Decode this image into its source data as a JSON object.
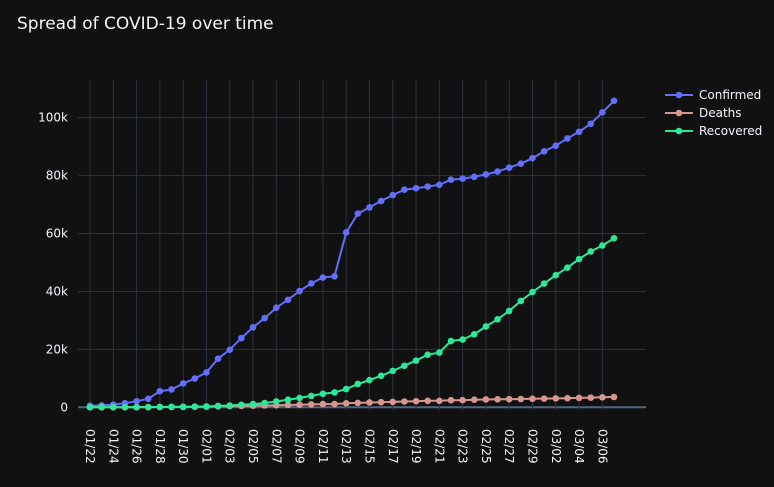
{
  "colors": {
    "background": "#111111",
    "grid": "#283442",
    "text": "#f2f5fa",
    "zero_line": "#506784"
  },
  "chart_data": {
    "type": "line",
    "title": "Spread of COVID-19 over time",
    "xlabel": "",
    "ylabel": "",
    "ylim": [
      -3000,
      113000
    ],
    "y_ticks": [
      0,
      20000,
      40000,
      60000,
      80000,
      100000
    ],
    "y_tick_labels": [
      "0",
      "20k",
      "40k",
      "60k",
      "80k",
      "100k"
    ],
    "x": [
      "01/22",
      "01/23",
      "01/24",
      "01/25",
      "01/26",
      "01/27",
      "01/28",
      "01/29",
      "01/30",
      "01/31",
      "02/01",
      "02/02",
      "02/03",
      "02/04",
      "02/05",
      "02/06",
      "02/07",
      "02/08",
      "02/09",
      "02/10",
      "02/11",
      "02/12",
      "02/13",
      "02/14",
      "02/15",
      "02/16",
      "02/17",
      "02/18",
      "02/19",
      "02/20",
      "02/21",
      "02/22",
      "02/23",
      "02/24",
      "02/25",
      "02/26",
      "02/27",
      "02/28",
      "02/29",
      "03/01",
      "03/02",
      "03/03",
      "03/04",
      "03/05",
      "03/06",
      "03/07"
    ],
    "x_tick_labels": [
      "01/22",
      "01/24",
      "01/26",
      "01/28",
      "01/30",
      "02/01",
      "02/03",
      "02/05",
      "02/07",
      "02/09",
      "02/11",
      "02/13",
      "02/15",
      "02/17",
      "02/19",
      "02/21",
      "02/23",
      "02/25",
      "02/27",
      "02/29",
      "03/02",
      "03/04",
      "03/06"
    ],
    "grid": true,
    "legend_position": "top-right",
    "series": [
      {
        "name": "Confirmed",
        "color": "#636efa",
        "values": [
          555,
          654,
          941,
          1434,
          2118,
          2927,
          5578,
          6166,
          8234,
          9927,
          12038,
          16787,
          19881,
          23892,
          27635,
          30794,
          34391,
          37120,
          40150,
          42762,
          44802,
          45221,
          60368,
          66885,
          69030,
          71224,
          73258,
          75136,
          75639,
          76197,
          76819,
          78572,
          78958,
          79561,
          80406,
          81388,
          82746,
          84112,
          86011,
          88369,
          90306,
          92840,
          95120,
          97886,
          101800,
          105836
        ]
      },
      {
        "name": "Deaths",
        "color": "#d9968f",
        "values": [
          17,
          18,
          26,
          42,
          56,
          82,
          131,
          133,
          171,
          213,
          259,
          362,
          426,
          492,
          564,
          634,
          719,
          806,
          906,
          1013,
          1113,
          1118,
          1371,
          1523,
          1666,
          1770,
          1868,
          2007,
          2122,
          2247,
          2251,
          2458,
          2469,
          2629,
          2708,
          2770,
          2814,
          2872,
          2941,
          2996,
          3085,
          3160,
          3254,
          3348,
          3460,
          3558
        ]
      },
      {
        "name": "Recovered",
        "color": "#2ee89a",
        "values": [
          28,
          30,
          36,
          39,
          52,
          61,
          107,
          126,
          143,
          222,
          284,
          472,
          623,
          852,
          1124,
          1487,
          2011,
          2616,
          3244,
          3946,
          4683,
          5150,
          6295,
          8058,
          9395,
          10865,
          12583,
          14352,
          16121,
          18177,
          18890,
          22886,
          23394,
          25227,
          27905,
          30384,
          33277,
          36711,
          39782,
          42716,
          45602,
          48229,
          51171,
          53797,
          55866,
          58359
        ]
      }
    ]
  }
}
